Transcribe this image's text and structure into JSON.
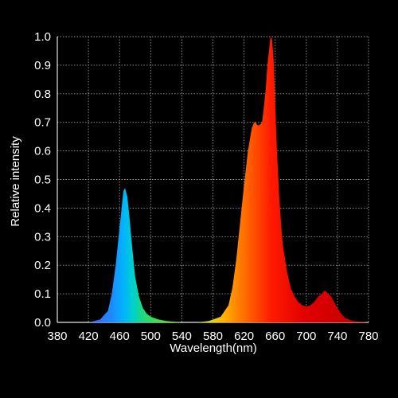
{
  "chart_data": {
    "type": "area",
    "title": "",
    "xlabel": "Wavelength(nm)",
    "ylabel": "Relative intensity",
    "xlim": [
      380,
      780
    ],
    "ylim": [
      0,
      1.0
    ],
    "x_ticks": [
      "380",
      "420",
      "460",
      "500",
      "540",
      "580",
      "620",
      "660",
      "700",
      "740",
      "780"
    ],
    "y_ticks": [
      "0.0",
      "0.1",
      "0.2",
      "0.3",
      "0.4",
      "0.5",
      "0.6",
      "0.7",
      "0.8",
      "0.9",
      "1.0"
    ],
    "grid": true,
    "series": [
      {
        "x": [
          380,
          420,
          435,
          445,
          450,
          455,
          460,
          463,
          465,
          467,
          470,
          473,
          476,
          480,
          485,
          490,
          495,
          500,
          510,
          520,
          540,
          560,
          575,
          590,
          600,
          605,
          610,
          615,
          620,
          625,
          630,
          633,
          635,
          637,
          640,
          643,
          645,
          648,
          650,
          652,
          654,
          656,
          658,
          660,
          662,
          665,
          668,
          670,
          675,
          680,
          685,
          690,
          695,
          700,
          705,
          710,
          715,
          720,
          723,
          725,
          728,
          732,
          735,
          740,
          745,
          750,
          760,
          780
        ],
        "y": [
          0.0,
          0.0,
          0.01,
          0.04,
          0.1,
          0.2,
          0.33,
          0.41,
          0.46,
          0.47,
          0.44,
          0.36,
          0.27,
          0.16,
          0.09,
          0.05,
          0.03,
          0.02,
          0.01,
          0.005,
          0.0,
          0.0,
          0.005,
          0.02,
          0.06,
          0.12,
          0.22,
          0.35,
          0.48,
          0.6,
          0.68,
          0.7,
          0.7,
          0.69,
          0.69,
          0.7,
          0.74,
          0.82,
          0.9,
          0.95,
          1.0,
          0.99,
          0.92,
          0.77,
          0.62,
          0.45,
          0.33,
          0.27,
          0.18,
          0.12,
          0.09,
          0.07,
          0.06,
          0.055,
          0.06,
          0.07,
          0.09,
          0.1,
          0.11,
          0.11,
          0.1,
          0.09,
          0.075,
          0.05,
          0.03,
          0.015,
          0.005,
          0.0
        ]
      }
    ],
    "colors": {
      "background": "#000000",
      "grid": "#9a9a9a",
      "text": "#ffffff",
      "spectrum_stops": [
        {
          "nm": 420,
          "color": "#3a63ff"
        },
        {
          "nm": 450,
          "color": "#1d8bff"
        },
        {
          "nm": 465,
          "color": "#00b3ff"
        },
        {
          "nm": 478,
          "color": "#00d2c8"
        },
        {
          "nm": 490,
          "color": "#1fd97b"
        },
        {
          "nm": 510,
          "color": "#3ee043"
        },
        {
          "nm": 540,
          "color": "#7ae020"
        },
        {
          "nm": 575,
          "color": "#e0e000"
        },
        {
          "nm": 595,
          "color": "#ffb000"
        },
        {
          "nm": 615,
          "color": "#ff7a00"
        },
        {
          "nm": 635,
          "color": "#ff4a00"
        },
        {
          "nm": 655,
          "color": "#ff1a00"
        },
        {
          "nm": 700,
          "color": "#e00000"
        },
        {
          "nm": 780,
          "color": "#c00000"
        }
      ]
    }
  }
}
